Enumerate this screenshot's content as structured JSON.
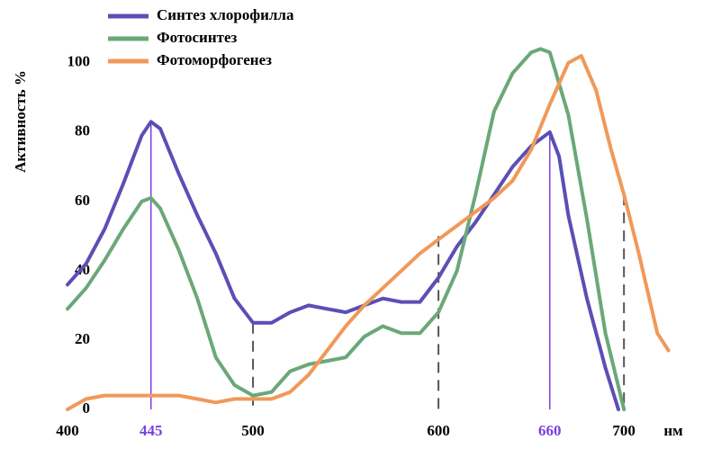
{
  "chart_data": {
    "type": "line",
    "x_axis_label": "нм",
    "y_axis_label": "Активность %",
    "xlim": [
      400,
      730
    ],
    "ylim": [
      0,
      115
    ],
    "xticks": [
      400,
      445,
      500,
      600,
      660,
      700
    ],
    "xtick_colors": [
      "#000000",
      "#7b3fe0",
      "#000000",
      "#000000",
      "#7b3fe0",
      "#000000"
    ],
    "yticks": [
      0,
      20,
      40,
      60,
      80,
      100
    ],
    "grid": false,
    "legend": "top-left",
    "reference_lines": [
      {
        "x": 445,
        "y": 83,
        "color": "#7b3fe0",
        "dashed": false
      },
      {
        "x": 500,
        "y": 25,
        "color": "#555555",
        "dashed": true
      },
      {
        "x": 600,
        "y": 50,
        "color": "#555555",
        "dashed": true
      },
      {
        "x": 660,
        "y": 80,
        "color": "#7b3fe0",
        "dashed": false
      },
      {
        "x": 700,
        "y": 62,
        "color": "#555555",
        "dashed": true
      }
    ],
    "series": [
      {
        "name": "Синтез хлорофилла",
        "color": "#5b4fb5",
        "x": [
          400,
          410,
          420,
          430,
          440,
          445,
          450,
          460,
          470,
          480,
          490,
          500,
          510,
          520,
          530,
          540,
          550,
          560,
          570,
          580,
          590,
          600,
          610,
          620,
          630,
          640,
          650,
          660,
          665,
          670,
          680,
          690,
          697
        ],
        "values": [
          36,
          42,
          52,
          65,
          79,
          83,
          81,
          68,
          56,
          45,
          32,
          25,
          25,
          28,
          30,
          29,
          28,
          30,
          32,
          31,
          31,
          38,
          47,
          54,
          62,
          70,
          76,
          80,
          73,
          56,
          32,
          12,
          0
        ]
      },
      {
        "name": "Фотосинтез",
        "color": "#6aa878",
        "x": [
          400,
          410,
          420,
          430,
          440,
          445,
          450,
          460,
          470,
          480,
          490,
          500,
          510,
          520,
          530,
          540,
          550,
          560,
          570,
          580,
          590,
          600,
          610,
          620,
          630,
          640,
          650,
          655,
          660,
          670,
          680,
          690,
          700
        ],
        "values": [
          29,
          35,
          43,
          52,
          60,
          61,
          58,
          46,
          32,
          15,
          7,
          4,
          5,
          11,
          13,
          14,
          15,
          21,
          24,
          22,
          22,
          28,
          40,
          62,
          86,
          97,
          103,
          104,
          103,
          85,
          55,
          22,
          0
        ]
      },
      {
        "name": "Фотоморфогенез",
        "color": "#f0995a",
        "x": [
          400,
          410,
          420,
          440,
          460,
          470,
          480,
          490,
          500,
          510,
          520,
          530,
          540,
          550,
          560,
          570,
          580,
          590,
          600,
          610,
          620,
          630,
          640,
          650,
          660,
          670,
          677,
          685,
          693,
          700,
          708,
          718,
          724
        ],
        "values": [
          0,
          3,
          4,
          4,
          4,
          3,
          2,
          3,
          3,
          3,
          5,
          10,
          17,
          24,
          30,
          35,
          40,
          45,
          49,
          53,
          57,
          61,
          66,
          75,
          88,
          100,
          102,
          92,
          75,
          62,
          45,
          22,
          17
        ]
      }
    ]
  }
}
